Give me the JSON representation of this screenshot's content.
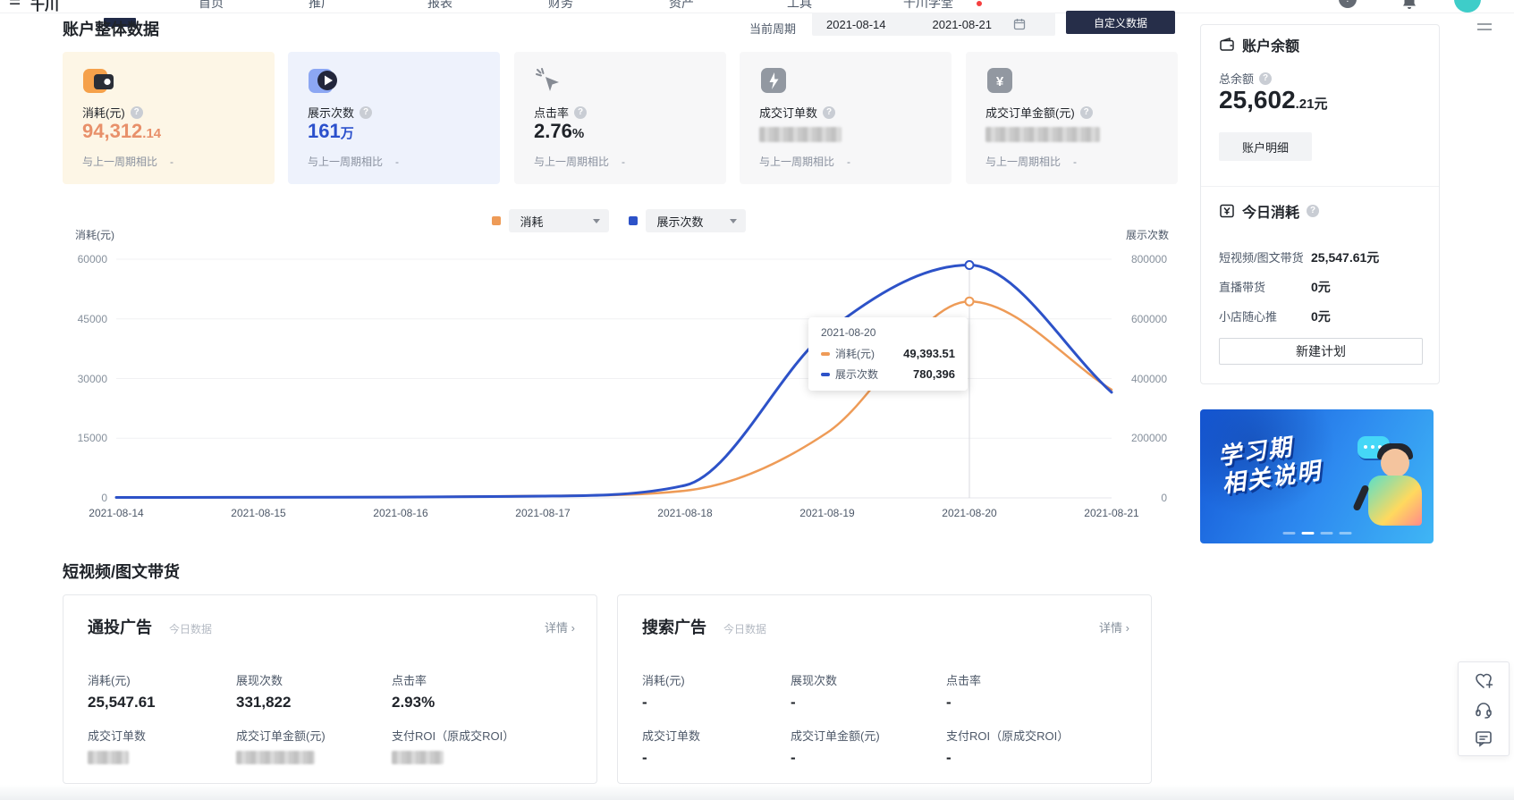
{
  "nav": {
    "logo": "千川",
    "items": [
      "首页",
      "推广",
      "报表",
      "财务",
      "资产",
      "工具",
      "千川学堂"
    ]
  },
  "header": {
    "title": "账户整体数据",
    "period_label": "当前周期",
    "date_start": "2021-08-14",
    "date_end": "2021-08-21",
    "custom_button": "自定义数据"
  },
  "stat_cards": [
    {
      "label": "消耗(元)",
      "value": "94,312",
      "value_suffix": ".14",
      "compare_label": "与上一周期相比",
      "compare_value": "-",
      "redacted": false,
      "accent": "#e8906a"
    },
    {
      "label": "展示次数",
      "value": "161",
      "value_suffix": "万",
      "compare_label": "与上一周期相比",
      "compare_value": "-",
      "redacted": false,
      "accent": "#2b50cc"
    },
    {
      "label": "点击率",
      "value": "2.76",
      "value_suffix": "%",
      "compare_label": "与上一周期相比",
      "compare_value": "-",
      "redacted": false,
      "accent": "#1f2329"
    },
    {
      "label": "成交订单数",
      "value": "",
      "value_suffix": "",
      "compare_label": "与上一周期相比",
      "compare_value": "-",
      "redacted": true
    },
    {
      "label": "成交订单金额(元)",
      "value": "",
      "value_suffix": "",
      "compare_label": "与上一周期相比",
      "compare_value": "-",
      "redacted": true
    }
  ],
  "chart_data": {
    "type": "line",
    "legend": [
      "消耗",
      "展示次数"
    ],
    "x": [
      "2021-08-14",
      "2021-08-15",
      "2021-08-16",
      "2021-08-17",
      "2021-08-18",
      "2021-08-19",
      "2021-08-20",
      "2021-08-21"
    ],
    "series": [
      {
        "name": "消耗(元)",
        "axis": "left",
        "color": "#ee9b57",
        "values": [
          100,
          150,
          200,
          500,
          1800,
          16400,
          49393.51,
          27200
        ]
      },
      {
        "name": "展示次数",
        "axis": "right",
        "color": "#2d52c8",
        "values": [
          1500,
          2000,
          2500,
          6000,
          42000,
          557000,
          780396,
          354000
        ]
      }
    ],
    "left_axis": {
      "label": "消耗(元)",
      "max": 60000,
      "ticks": [
        "60000",
        "45000",
        "30000",
        "15000",
        "0"
      ]
    },
    "right_axis": {
      "label": "展示次数",
      "max": 800000,
      "ticks": [
        "800000",
        "600000",
        "400000",
        "200000",
        "0"
      ]
    },
    "grid": true,
    "legend_position": "top",
    "highlight": {
      "x_index": 6,
      "date": "2021-08-20",
      "rows": [
        {
          "label": "消耗(元)",
          "value": "49,393.51"
        },
        {
          "label": "展示次数",
          "value": "780,396"
        }
      ]
    }
  },
  "sidebar": {
    "balance": {
      "title": "账户余额",
      "total_label": "总余额",
      "amount": "25,602",
      "amount_suffix": ".21元",
      "detail_button": "账户明细"
    },
    "today": {
      "title": "今日消耗",
      "rows": [
        {
          "label": "短视频/图文带货",
          "value": "25,547.61元"
        },
        {
          "label": "直播带货",
          "value": "0元"
        },
        {
          "label": "小店随心推",
          "value": "0元"
        }
      ],
      "new_plan_button": "新建计划"
    },
    "banner": {
      "line1": "学习期",
      "line2": "相关说明"
    }
  },
  "section": {
    "title": "短视频/图文带货",
    "cards": [
      {
        "title": "通投广告",
        "subtitle": "今日数据",
        "detail": "详情 ›",
        "metrics": [
          {
            "label": "消耗(元)",
            "value": "25,547.61",
            "redacted": false
          },
          {
            "label": "展现次数",
            "value": "331,822",
            "redacted": false
          },
          {
            "label": "点击率",
            "value": "2.93%",
            "redacted": false
          },
          {
            "label": "成交订单数",
            "value": "",
            "redacted": true
          },
          {
            "label": "成交订单金额(元)",
            "value": "",
            "redacted": true
          },
          {
            "label": "支付ROI（原成交ROI）",
            "value": "",
            "redacted": true
          }
        ]
      },
      {
        "title": "搜索广告",
        "subtitle": "今日数据",
        "detail": "详情 ›",
        "metrics": [
          {
            "label": "消耗(元)",
            "value": "-",
            "redacted": false
          },
          {
            "label": "展现次数",
            "value": "-",
            "redacted": false
          },
          {
            "label": "点击率",
            "value": "-",
            "redacted": false
          },
          {
            "label": "成交订单数",
            "value": "-",
            "redacted": false
          },
          {
            "label": "成交订单金额(元)",
            "value": "-",
            "redacted": false
          },
          {
            "label": "支付ROI（原成交ROI）",
            "value": "-",
            "redacted": false
          }
        ]
      }
    ]
  },
  "float_toolbar": {
    "icons": [
      "favorite-heart",
      "customer-service",
      "feedback"
    ]
  },
  "colors": {
    "accent_orange": "#ee9b57",
    "accent_blue": "#2d52c8",
    "dark_button": "#262e49",
    "avatar": "#3ecdc9"
  }
}
